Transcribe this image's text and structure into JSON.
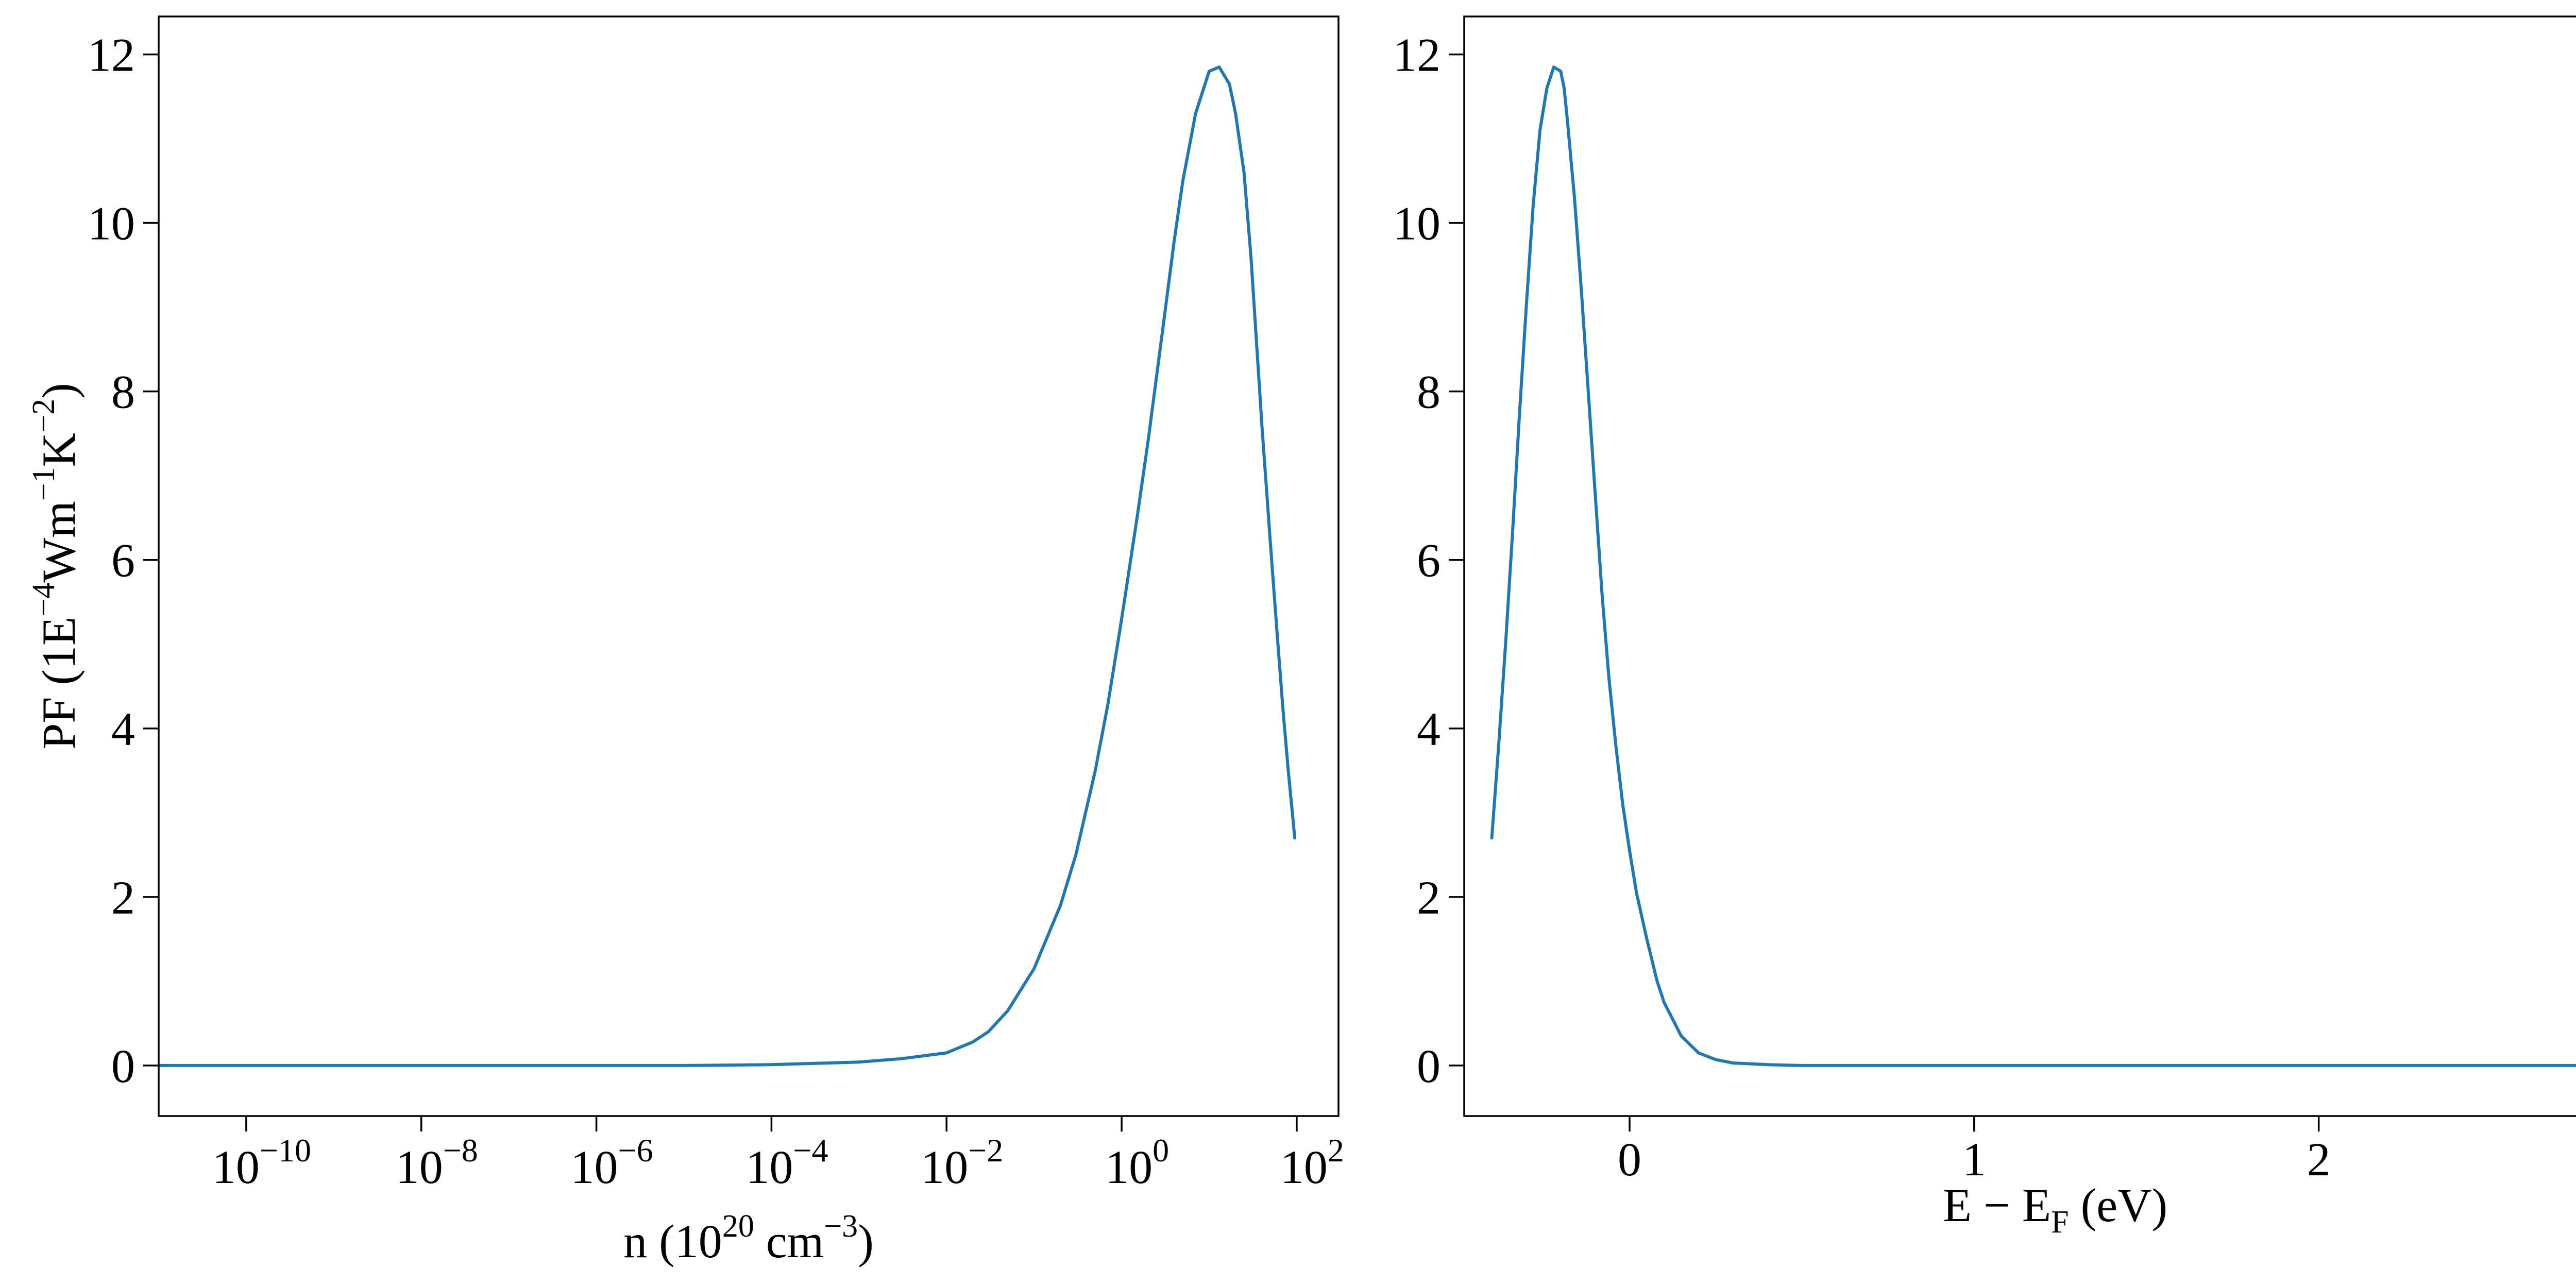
{
  "chart_data": [
    {
      "type": "line",
      "xscale": "log",
      "xlabel": {
        "main": "n (10",
        "sup1": "20",
        "mid": " cm",
        "sup2": "−3",
        "end": ")"
      },
      "ylabel": {
        "main": "PF (1E",
        "sup1": "−4",
        "mid": "Wm",
        "sup2": "−1",
        "mid2": "K",
        "sup3": "−2",
        "end": ")"
      },
      "xlim": [
        1e-11,
        300.0
      ],
      "ylim": [
        -0.6,
        12.45
      ],
      "xticks": [
        {
          "value": 1e-10,
          "base": "10",
          "exp": "−10"
        },
        {
          "value": 1e-08,
          "base": "10",
          "exp": "−8"
        },
        {
          "value": 1e-06,
          "base": "10",
          "exp": "−6"
        },
        {
          "value": 0.0001,
          "base": "10",
          "exp": "−4"
        },
        {
          "value": 0.01,
          "base": "10",
          "exp": "−2"
        },
        {
          "value": 1,
          "base": "10",
          "exp": "0"
        },
        {
          "value": 100,
          "base": "10",
          "exp": "2"
        }
      ],
      "yticks": [
        0,
        2,
        4,
        6,
        8,
        10,
        12
      ],
      "ytick_labels": [
        "0",
        "2",
        "4",
        "6",
        "8",
        "10",
        "12"
      ],
      "series": [
        {
          "color": "#1f77b4",
          "x": [
            1e-11,
            1e-09,
            1e-07,
            1e-05,
            0.0001,
            0.001,
            0.003,
            0.01,
            0.02,
            0.03,
            0.05,
            0.1,
            0.2,
            0.3,
            0.5,
            0.7,
            1,
            1.5,
            2,
            3,
            4,
            5,
            7,
            10,
            13,
            17,
            20,
            25,
            30,
            40,
            50,
            60,
            70,
            80,
            90,
            95
          ],
          "y": [
            0,
            0,
            0,
            0,
            0.01,
            0.04,
            0.08,
            0.15,
            0.28,
            0.4,
            0.65,
            1.15,
            1.9,
            2.5,
            3.5,
            4.3,
            5.3,
            6.5,
            7.4,
            8.8,
            9.8,
            10.5,
            11.3,
            11.8,
            11.85,
            11.65,
            11.3,
            10.6,
            9.6,
            7.6,
            6.2,
            5.1,
            4.2,
            3.5,
            2.95,
            2.7
          ]
        }
      ]
    },
    {
      "type": "line",
      "xlabel": {
        "main": "E − E",
        "sub": "F",
        "end": " (eV)"
      },
      "xlim": [
        -0.48,
        2.95
      ],
      "ylim": [
        -0.6,
        12.45
      ],
      "xticks": [
        0,
        1,
        2
      ],
      "xtick_labels": [
        "0",
        "1",
        "2"
      ],
      "yticks": [
        0,
        2,
        4,
        6,
        8,
        10,
        12
      ],
      "ytick_labels": [
        "0",
        "2",
        "4",
        "6",
        "8",
        "10",
        "12"
      ],
      "series": [
        {
          "color": "#1f77b4",
          "x": [
            -0.4,
            -0.38,
            -0.36,
            -0.34,
            -0.32,
            -0.3,
            -0.28,
            -0.26,
            -0.24,
            -0.22,
            -0.2,
            -0.19,
            -0.18,
            -0.16,
            -0.14,
            -0.12,
            -0.1,
            -0.08,
            -0.06,
            -0.04,
            -0.02,
            0,
            0.02,
            0.05,
            0.08,
            0.1,
            0.15,
            0.2,
            0.25,
            0.3,
            0.4,
            0.5,
            0.7,
            1,
            1.5,
            2,
            2.5,
            2.8
          ],
          "y": [
            2.7,
            3.8,
            5.0,
            6.3,
            7.7,
            9.0,
            10.2,
            11.1,
            11.6,
            11.85,
            11.8,
            11.6,
            11.2,
            10.3,
            9.2,
            8.0,
            6.8,
            5.6,
            4.6,
            3.8,
            3.1,
            2.55,
            2.05,
            1.5,
            1.0,
            0.75,
            0.35,
            0.15,
            0.07,
            0.03,
            0.01,
            0,
            0,
            0,
            0,
            0,
            0,
            0
          ]
        }
      ]
    }
  ]
}
